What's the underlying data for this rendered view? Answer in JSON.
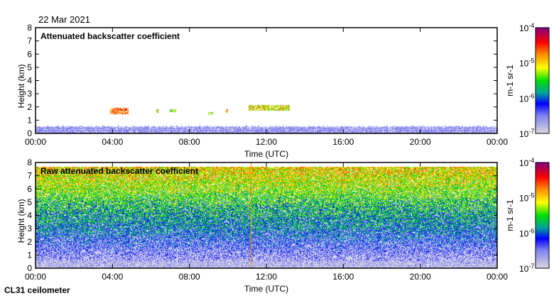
{
  "date": "22 Mar 2021",
  "footer": "CL31 ceilometer",
  "colors": {
    "cloud_low": "#00dd00",
    "cloud_mid": "#ffcc00",
    "cloud_high": "#ff2000",
    "cloud_peak": "#aa0044",
    "noise_base": "#7a7aee"
  },
  "chart_data": [
    {
      "type": "heatmap",
      "title": "Attenuated backscatter coefficient",
      "xlabel": "Time (UTC)",
      "ylabel": "Height (km)",
      "xticks": [
        "00:00",
        "04:00",
        "08:00",
        "12:00",
        "16:00",
        "20:00",
        "00:00"
      ],
      "xlim_hours": [
        0,
        24
      ],
      "yticks": [
        "0",
        "1",
        "2",
        "3",
        "4",
        "5",
        "6",
        "7",
        "8"
      ],
      "ylim": [
        0,
        8
      ],
      "colorbar": {
        "label": "m-1 sr-1",
        "ticks": [
          "10-4",
          "10-5",
          "10-6",
          "10-7"
        ],
        "range_log10": [
          -7,
          -4
        ]
      },
      "features": [
        {
          "name": "near-surface layer",
          "t_start": 0,
          "t_end": 24,
          "h_bottom": 0,
          "h_top": 0.5,
          "log10_value": -6.7
        },
        {
          "name": "cloud",
          "t_start": 3.9,
          "t_end": 4.8,
          "h_bottom": 1.5,
          "h_top": 1.9,
          "log10_value": -4.6
        },
        {
          "name": "cloud",
          "t_start": 6.3,
          "t_end": 6.4,
          "h_bottom": 1.6,
          "h_top": 1.8,
          "log10_value": -5.2
        },
        {
          "name": "cloud",
          "t_start": 7.0,
          "t_end": 7.3,
          "h_bottom": 1.65,
          "h_top": 1.8,
          "log10_value": -5.3
        },
        {
          "name": "cloud",
          "t_start": 9.0,
          "t_end": 9.2,
          "h_bottom": 1.4,
          "h_top": 1.6,
          "log10_value": -5.0
        },
        {
          "name": "cloud",
          "t_start": 9.9,
          "t_end": 10.0,
          "h_bottom": 1.6,
          "h_top": 1.8,
          "log10_value": -4.7
        },
        {
          "name": "cloud",
          "t_start": 11.1,
          "t_end": 13.2,
          "h_bottom": 1.75,
          "h_top": 2.1,
          "log10_value": -5.0
        }
      ]
    },
    {
      "type": "heatmap",
      "title": "Raw attenuated backscatter coefficient",
      "xlabel": "Time (UTC)",
      "ylabel": "Height (km)",
      "xticks": [
        "00:00",
        "04:00",
        "08:00",
        "12:00",
        "16:00",
        "20:00",
        "00:00"
      ],
      "xlim_hours": [
        0,
        24
      ],
      "yticks": [
        "0",
        "1",
        "2",
        "3",
        "4",
        "5",
        "6",
        "7",
        "8"
      ],
      "ylim": [
        0,
        8
      ],
      "data_top_km": 7.7,
      "colorbar": {
        "label": "m-1 sr-1",
        "ticks": [
          "10-4",
          "10-5",
          "10-6",
          "10-7"
        ],
        "range_log10": [
          -7,
          -4
        ]
      },
      "noise_profile": {
        "heights_km": [
          0,
          1,
          2,
          3,
          4,
          5,
          6,
          7,
          7.7
        ],
        "log10_value": [
          -6.9,
          -6.6,
          -6.3,
          -6.0,
          -5.8,
          -5.6,
          -5.3,
          -5.1,
          -5.0
        ]
      }
    }
  ]
}
